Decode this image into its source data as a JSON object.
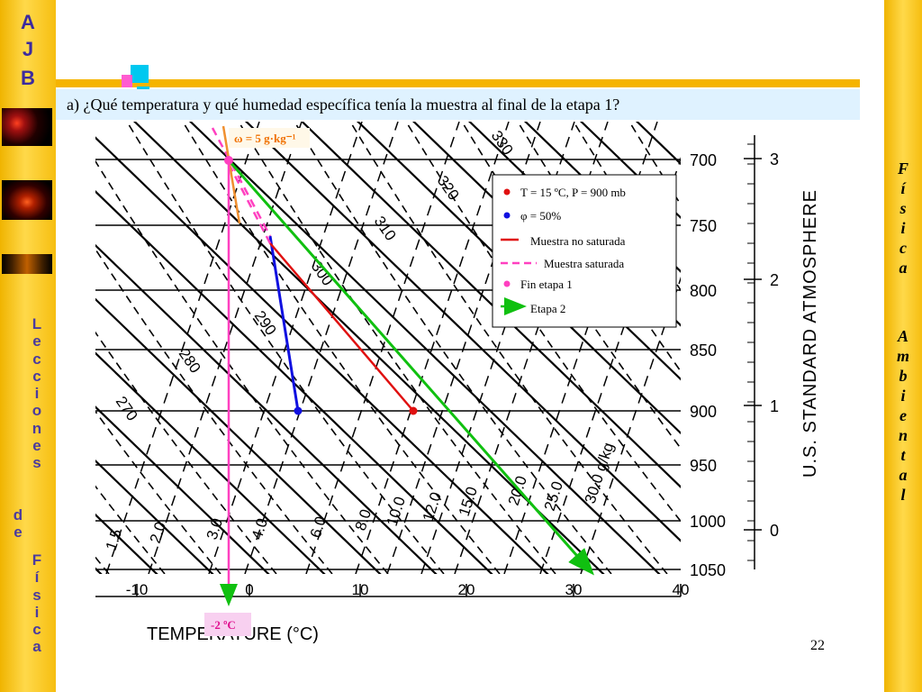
{
  "branding": {
    "ajb_letters": [
      "A",
      "J",
      "B"
    ],
    "left_vertical_line1": [
      "L",
      "e",
      "c",
      "c",
      "i",
      "o",
      "n",
      "e",
      "s"
    ],
    "left_vertical_de": [
      "d",
      "e"
    ],
    "left_vertical_line2": [
      "F",
      "í",
      "s",
      "i",
      "c",
      "a"
    ],
    "right_vertical_1": [
      "F",
      "í",
      "s",
      "i",
      "c",
      "a"
    ],
    "right_vertical_2": [
      "A",
      "m",
      "b",
      "i",
      "e",
      "n",
      "t",
      "a",
      "l"
    ]
  },
  "question": "a) ¿Qué temperatura y qué humedad específica tenía la muestra al final de la etapa 1?",
  "page_number": "22",
  "chart_data": {
    "type": "diagram",
    "xlabel": "TEMPERATURE (°C)",
    "x_ticks": [
      "-10",
      "0",
      "10",
      "20",
      "30",
      "40"
    ],
    "pressure_ticks": [
      "700",
      "750",
      "800",
      "850",
      "900",
      "950",
      "1000",
      "1050"
    ],
    "height_ticks": [
      "3",
      "2",
      "1",
      "0"
    ],
    "right_axis_label": "U.S. STANDARD ATMOSPHERE",
    "theta_labels": [
      "270",
      "280",
      "290",
      "300",
      "310",
      "320",
      "330"
    ],
    "mixing_ratio_labels": [
      "1.5",
      "2.0",
      "3.0",
      "4.0",
      "6.0",
      "8.0",
      "10.0",
      "12.0",
      "15.0",
      "20.0",
      "25.0",
      "30.0 g/kg"
    ],
    "annotation_omega": "ω = 5 g·kg⁻¹",
    "annotation_temp": "-2 ºC",
    "points": [
      {
        "name": "T = 15 ºC, P = 900 mb",
        "temperature_c": 15,
        "pressure_mb": 900,
        "color": "#e01010"
      },
      {
        "name": "φ = 50%",
        "temperature_c": 4.5,
        "pressure_mb": 900,
        "color": "#1010e0"
      },
      {
        "name": "Fin etapa 1",
        "temperature_c": -2,
        "pressure_mb": 700,
        "color": "#ff40c0"
      }
    ],
    "legend": {
      "items": [
        {
          "label": "T = 15 ºC, P = 900 mb",
          "symbol": "dot",
          "color": "#e01010"
        },
        {
          "label": "φ = 50%",
          "symbol": "dot",
          "color": "#1010e0"
        },
        {
          "label": "Muestra no saturada",
          "symbol": "line",
          "color": "#e01010"
        },
        {
          "label": "Muestra saturada",
          "symbol": "dash",
          "color": "#ff40c0"
        },
        {
          "label": "Fin etapa 1",
          "symbol": "dot",
          "color": "#ff40c0"
        },
        {
          "label": "Etapa 2",
          "symbol": "arrow",
          "color": "#10c010"
        }
      ]
    }
  }
}
